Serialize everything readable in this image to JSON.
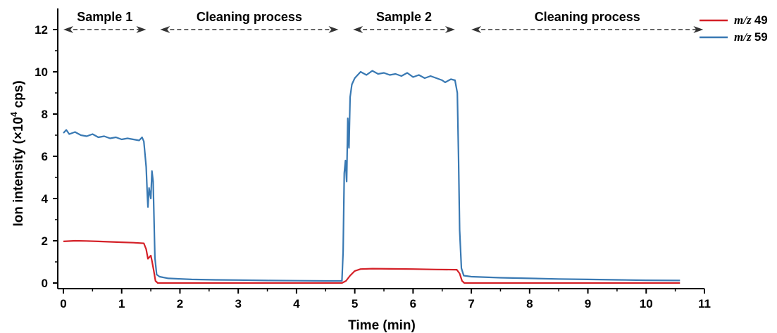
{
  "chart_data": {
    "type": "line",
    "xlabel": "Time (min)",
    "ylabel_main": "Ion intensity (×10",
    "ylabel_exp": "4",
    "ylabel_tail": " cps)",
    "xlim": [
      0,
      11
    ],
    "ylim": [
      0,
      12
    ],
    "xticks": [
      0,
      1,
      2,
      3,
      4,
      5,
      6,
      7,
      8,
      9,
      10,
      11
    ],
    "yticks": [
      0,
      2,
      4,
      6,
      8,
      10,
      12
    ],
    "grid": false,
    "legend_position": "top-right",
    "phases": [
      {
        "label": "Sample 1",
        "x_start": 0.0,
        "x_end": 1.42
      },
      {
        "label": "Cleaning process",
        "x_start": 1.66,
        "x_end": 4.72
      },
      {
        "label": "Sample 2",
        "x_start": 4.97,
        "x_end": 6.72
      },
      {
        "label": "Cleaning process",
        "x_start": 7.0,
        "x_end": 10.98
      }
    ],
    "series": [
      {
        "name_italic": "m/z",
        "name_num": "49",
        "color": "#d42027",
        "points": [
          [
            0.0,
            1.97
          ],
          [
            0.2,
            2.0
          ],
          [
            0.4,
            1.99
          ],
          [
            0.6,
            1.97
          ],
          [
            0.8,
            1.95
          ],
          [
            1.0,
            1.93
          ],
          [
            1.2,
            1.91
          ],
          [
            1.38,
            1.88
          ],
          [
            1.42,
            1.6
          ],
          [
            1.45,
            1.15
          ],
          [
            1.5,
            1.3
          ],
          [
            1.52,
            1.05
          ],
          [
            1.55,
            0.6
          ],
          [
            1.58,
            0.1
          ],
          [
            1.62,
            0.0
          ],
          [
            2.0,
            0.0
          ],
          [
            3.0,
            0.0
          ],
          [
            4.0,
            0.0
          ],
          [
            4.78,
            0.0
          ],
          [
            4.85,
            0.1
          ],
          [
            4.92,
            0.35
          ],
          [
            5.0,
            0.57
          ],
          [
            5.1,
            0.66
          ],
          [
            5.3,
            0.68
          ],
          [
            5.6,
            0.67
          ],
          [
            6.0,
            0.66
          ],
          [
            6.4,
            0.64
          ],
          [
            6.75,
            0.63
          ],
          [
            6.8,
            0.45
          ],
          [
            6.84,
            0.1
          ],
          [
            6.88,
            0.0
          ],
          [
            7.5,
            0.0
          ],
          [
            8.5,
            0.0
          ],
          [
            9.5,
            0.0
          ],
          [
            10.58,
            0.0
          ]
        ]
      },
      {
        "name_italic": "m/z",
        "name_num": "59",
        "color": "#3979b3",
        "points": [
          [
            0.0,
            7.1
          ],
          [
            0.05,
            7.25
          ],
          [
            0.1,
            7.05
          ],
          [
            0.2,
            7.15
          ],
          [
            0.3,
            7.0
          ],
          [
            0.4,
            6.95
          ],
          [
            0.5,
            7.05
          ],
          [
            0.6,
            6.9
          ],
          [
            0.7,
            6.95
          ],
          [
            0.8,
            6.85
          ],
          [
            0.9,
            6.9
          ],
          [
            1.0,
            6.8
          ],
          [
            1.1,
            6.85
          ],
          [
            1.2,
            6.8
          ],
          [
            1.3,
            6.75
          ],
          [
            1.35,
            6.9
          ],
          [
            1.38,
            6.7
          ],
          [
            1.42,
            5.5
          ],
          [
            1.44,
            4.2
          ],
          [
            1.45,
            3.6
          ],
          [
            1.47,
            4.5
          ],
          [
            1.5,
            4.0
          ],
          [
            1.52,
            5.3
          ],
          [
            1.54,
            4.8
          ],
          [
            1.55,
            3.7
          ],
          [
            1.57,
            1.2
          ],
          [
            1.6,
            0.4
          ],
          [
            1.65,
            0.3
          ],
          [
            1.8,
            0.22
          ],
          [
            2.2,
            0.17
          ],
          [
            2.6,
            0.15
          ],
          [
            3.0,
            0.14
          ],
          [
            3.5,
            0.12
          ],
          [
            4.0,
            0.11
          ],
          [
            4.5,
            0.1
          ],
          [
            4.78,
            0.1
          ],
          [
            4.8,
            1.5
          ],
          [
            4.82,
            5.2
          ],
          [
            4.84,
            5.8
          ],
          [
            4.86,
            4.8
          ],
          [
            4.88,
            7.8
          ],
          [
            4.9,
            6.4
          ],
          [
            4.92,
            8.8
          ],
          [
            4.95,
            9.4
          ],
          [
            5.0,
            9.7
          ],
          [
            5.1,
            10.0
          ],
          [
            5.2,
            9.85
          ],
          [
            5.3,
            10.05
          ],
          [
            5.4,
            9.9
          ],
          [
            5.5,
            9.95
          ],
          [
            5.6,
            9.85
          ],
          [
            5.7,
            9.9
          ],
          [
            5.8,
            9.8
          ],
          [
            5.9,
            9.95
          ],
          [
            6.0,
            9.75
          ],
          [
            6.1,
            9.85
          ],
          [
            6.2,
            9.7
          ],
          [
            6.3,
            9.8
          ],
          [
            6.4,
            9.7
          ],
          [
            6.5,
            9.6
          ],
          [
            6.55,
            9.5
          ],
          [
            6.65,
            9.65
          ],
          [
            6.72,
            9.6
          ],
          [
            6.76,
            9.0
          ],
          [
            6.78,
            6.0
          ],
          [
            6.8,
            2.5
          ],
          [
            6.83,
            0.7
          ],
          [
            6.87,
            0.35
          ],
          [
            7.0,
            0.3
          ],
          [
            7.5,
            0.25
          ],
          [
            8.0,
            0.22
          ],
          [
            8.5,
            0.19
          ],
          [
            9.0,
            0.17
          ],
          [
            9.5,
            0.15
          ],
          [
            10.0,
            0.13
          ],
          [
            10.58,
            0.12
          ]
        ]
      }
    ]
  }
}
